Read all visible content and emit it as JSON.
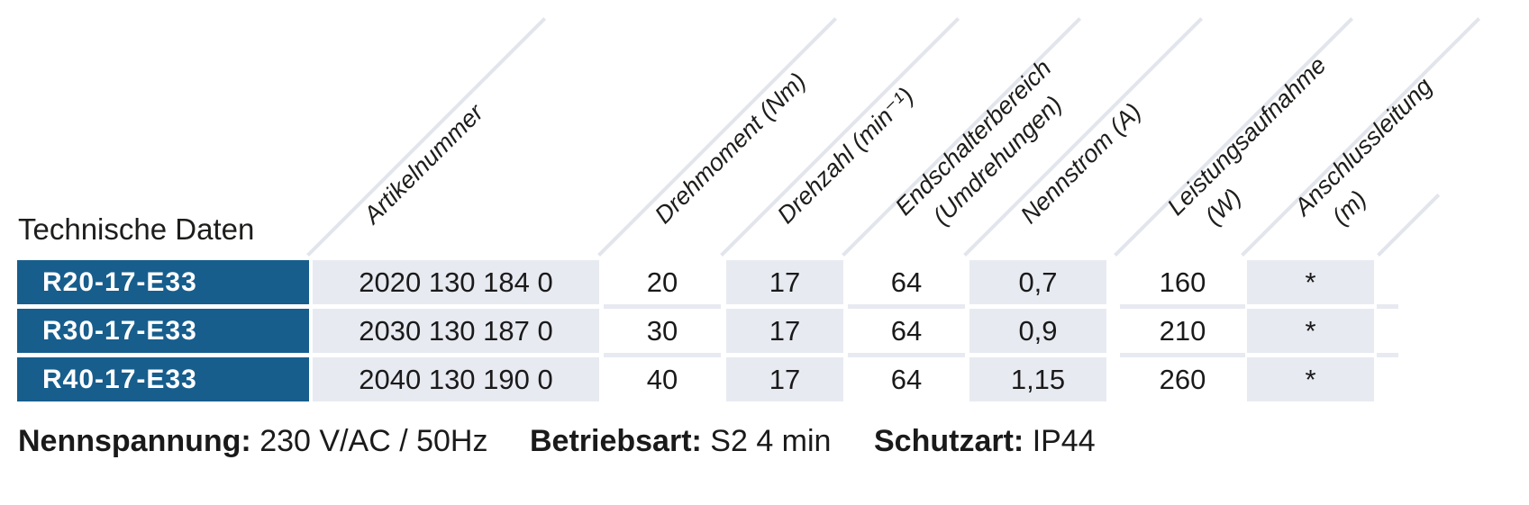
{
  "title": "Technische Daten",
  "colors": {
    "row_label_bg": "#175e8d",
    "shaded_cell_bg": "#e8eaf2",
    "diagonal_line": "#e2e5ec",
    "text": "#1d1d1b",
    "row_label_text": "#ffffff"
  },
  "table": {
    "columns": [
      {
        "id": "artikelnummer",
        "label": "Artikelnummer",
        "label2": ""
      },
      {
        "id": "drehmoment",
        "label": "Drehmoment (Nm)",
        "label2": ""
      },
      {
        "id": "drehzahl",
        "label": "Drehzahl (min⁻¹)",
        "label2": ""
      },
      {
        "id": "endschalterbereich",
        "label": "Endschalterbereich",
        "label2": "(Umdrehungen)"
      },
      {
        "id": "nennstrom",
        "label": "Nennstrom (A)",
        "label2": ""
      },
      {
        "id": "leistungsaufnahme",
        "label": "Leistungsaufnahme",
        "label2": "(W)"
      },
      {
        "id": "anschlussleitung",
        "label": "Anschlussleitung",
        "label2": "(m)"
      }
    ],
    "rows": [
      {
        "label": "R20-17-E33",
        "values": [
          "2020 130 184 0",
          "20",
          "17",
          "64",
          "0,7",
          "160",
          "*"
        ]
      },
      {
        "label": "R30-17-E33",
        "values": [
          "2030 130 187 0",
          "30",
          "17",
          "64",
          "0,9",
          "210",
          "*"
        ]
      },
      {
        "label": "R40-17-E33",
        "values": [
          "2040 130 190 0",
          "40",
          "17",
          "64",
          "1,15",
          "260",
          "*"
        ]
      }
    ]
  },
  "footer": [
    {
      "label": "Nennspannung:",
      "value": "230 V/AC / 50Hz"
    },
    {
      "label": "Betriebsart:",
      "value": "S2 4 min"
    },
    {
      "label": "Schutzart:",
      "value": "IP44"
    }
  ]
}
